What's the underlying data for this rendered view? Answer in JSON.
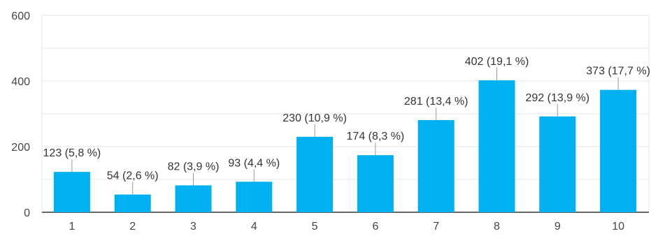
{
  "chart_data": {
    "type": "bar",
    "title": "",
    "xlabel": "",
    "ylabel": "",
    "categories": [
      "1",
      "2",
      "3",
      "4",
      "5",
      "6",
      "7",
      "8",
      "9",
      "10"
    ],
    "values": [
      123,
      54,
      82,
      93,
      230,
      174,
      281,
      402,
      292,
      373
    ],
    "data_labels": [
      "123 (5,8 %)",
      "54 (2,6 %)",
      "82 (3,9 %)",
      "93 (4,4 %)",
      "230 (10,9 %)",
      "174 (8,3 %)",
      "281 (13,4 %)",
      "402 (19,1 %)",
      "292 (13,9 %)",
      "373 (17,7 %)"
    ],
    "ylim": [
      0,
      600
    ],
    "yticks": [
      "0",
      "200",
      "400",
      "600"
    ],
    "grid": true,
    "bar_color": "#00b0f0",
    "legend": "none"
  }
}
